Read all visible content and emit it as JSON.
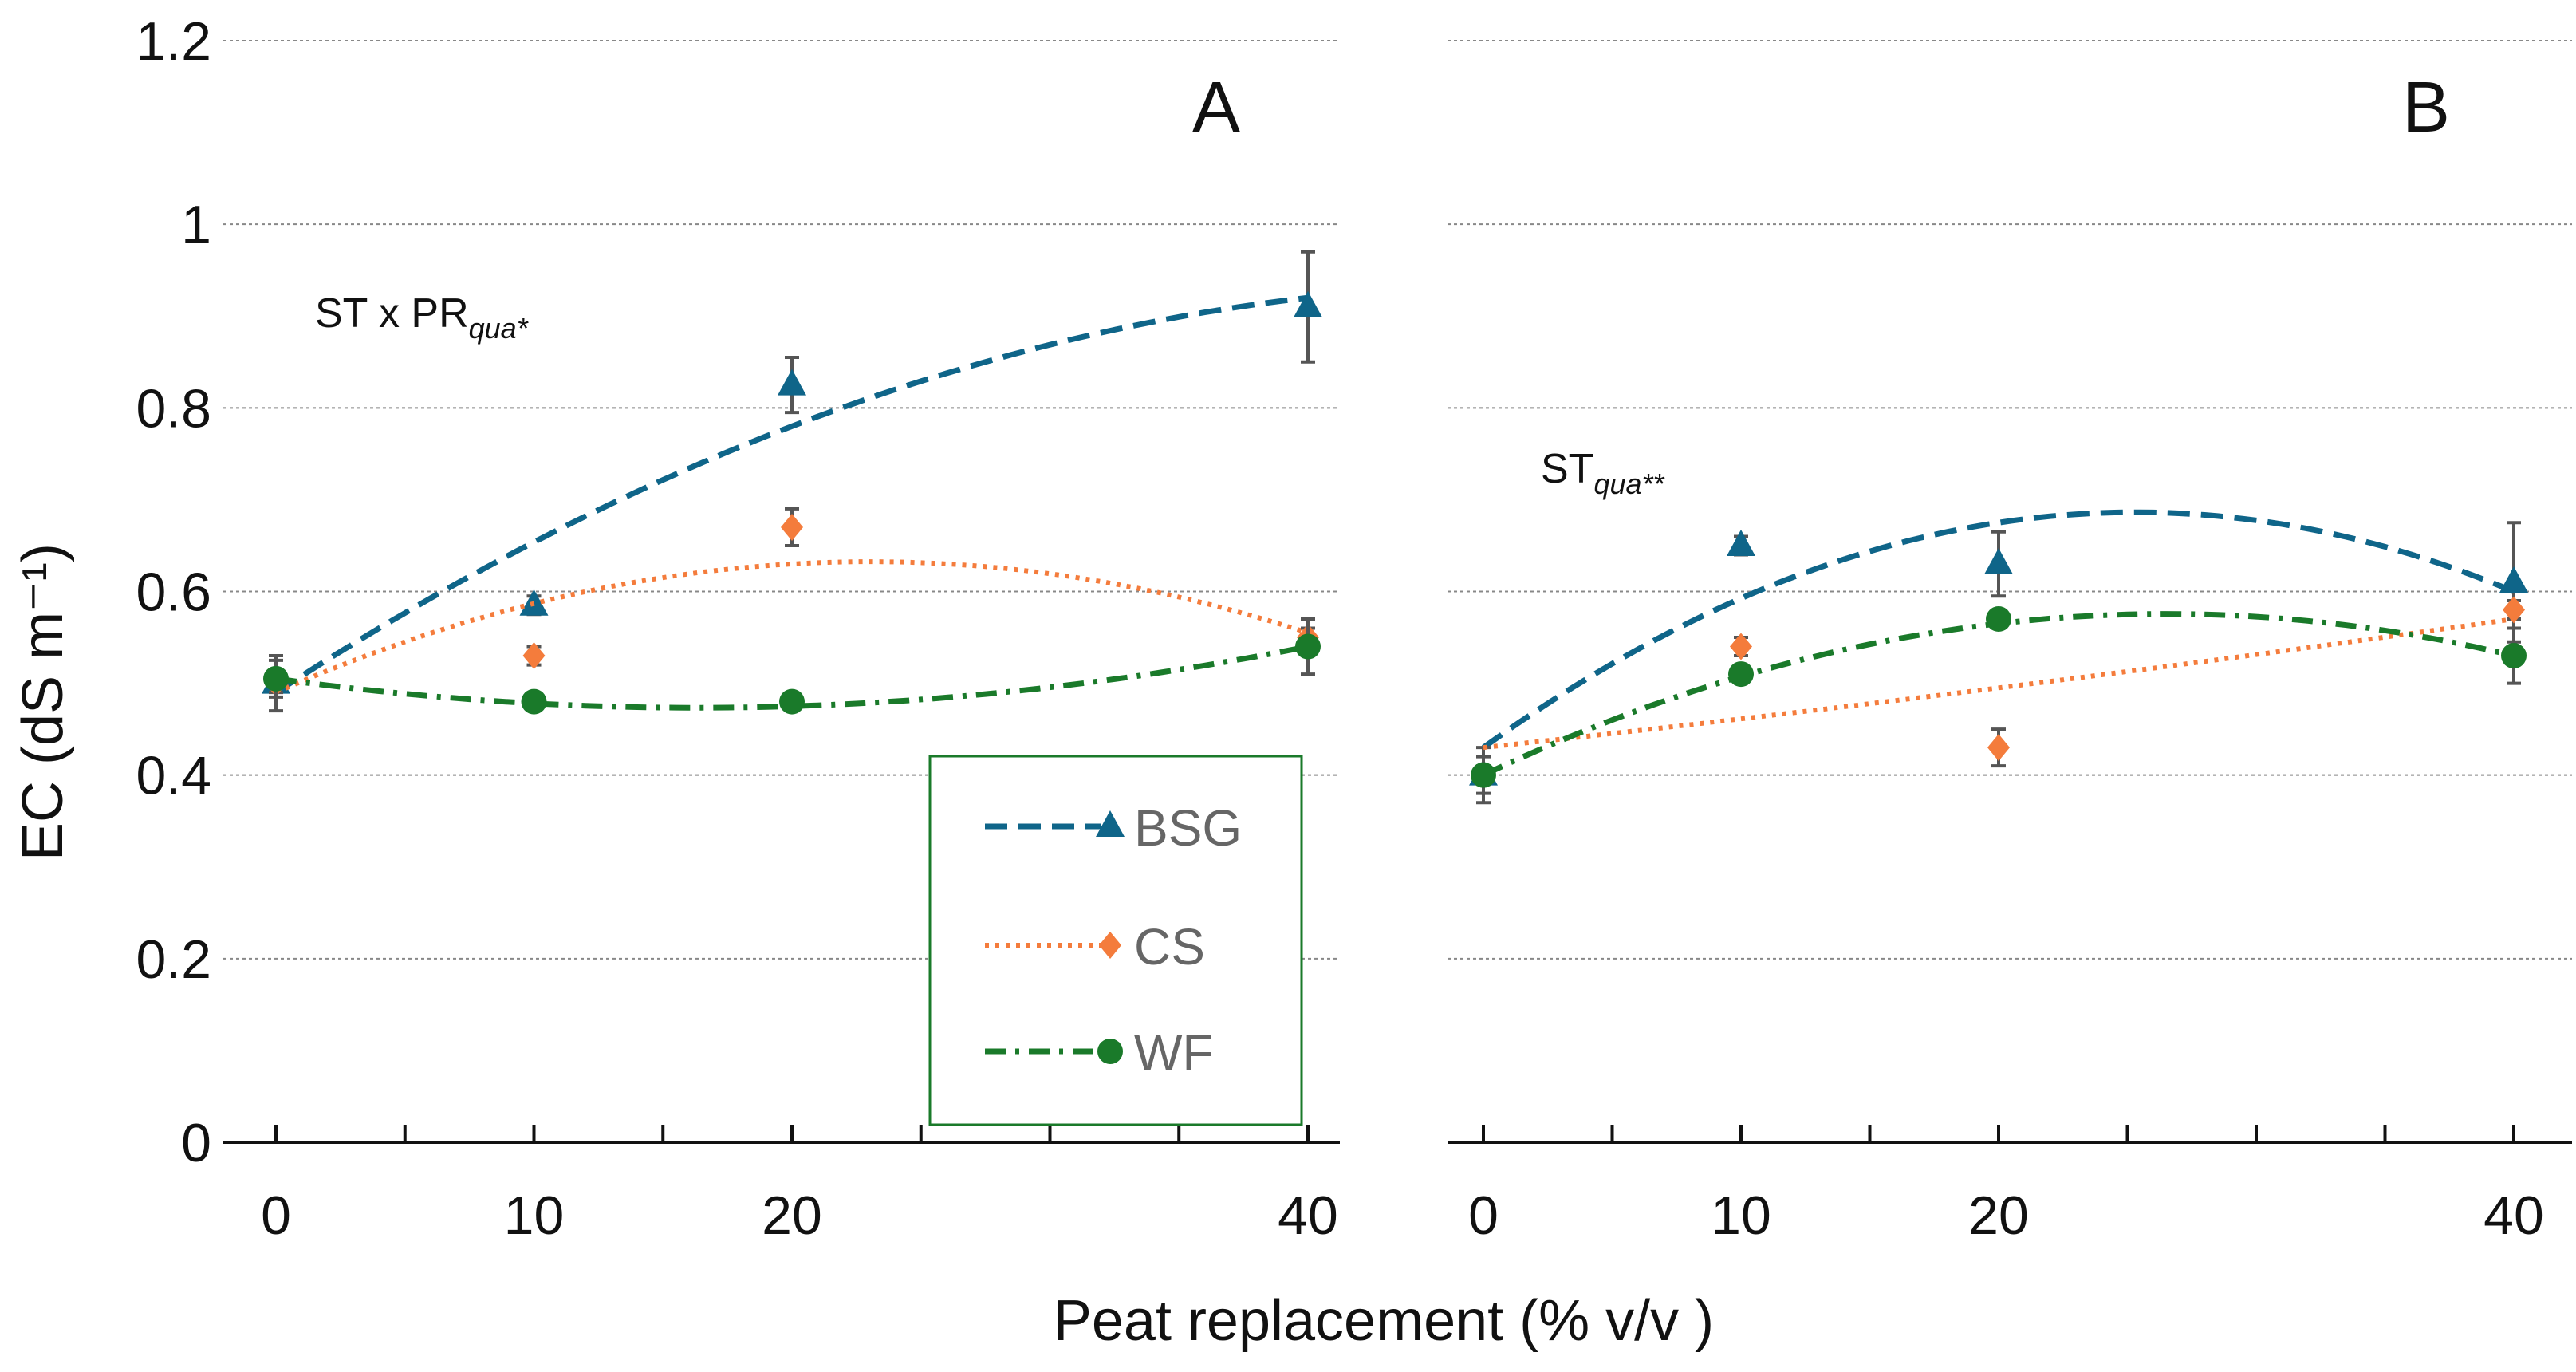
{
  "chart_data": [
    {
      "type": "scatter",
      "panel_label": "A",
      "annotation": {
        "main": "ST x PR",
        "sub": "qua*"
      },
      "x": [
        0,
        10,
        20,
        40
      ],
      "xlim": [
        0,
        40
      ],
      "ylim": [
        0,
        1.2
      ],
      "yticks": [
        "0",
        "0.2",
        "0.4",
        "0.6",
        "0.8",
        "1",
        "1.2"
      ],
      "xticks": [
        "0",
        "10",
        "20",
        "40"
      ],
      "series": [
        {
          "name": "BSG",
          "color": "#0f6589",
          "marker": "triangle",
          "line": "dashed",
          "values": [
            0.5,
            0.585,
            0.825,
            0.91
          ],
          "errors": [
            0.03,
            0.01,
            0.03,
            0.06
          ],
          "fit": [
            0.49,
            0.78,
            0.92
          ]
        },
        {
          "name": "CS",
          "color": "#f47c3c",
          "marker": "diamond",
          "line": "dotted",
          "values": [
            0.5,
            0.53,
            0.67,
            0.55
          ],
          "errors": [
            0.01,
            0.01,
            0.02,
            0.01
          ],
          "fit": [
            0.49,
            0.63,
            0.555
          ]
        },
        {
          "name": "WF",
          "color": "#1a7a2a",
          "marker": "circle",
          "line": "dashdot",
          "values": [
            0.505,
            0.48,
            0.48,
            0.54
          ],
          "errors": [
            0.02,
            0.005,
            0.005,
            0.03
          ],
          "fit": [
            0.505,
            0.475,
            0.54
          ]
        }
      ]
    },
    {
      "type": "scatter",
      "panel_label": "B",
      "annotation": {
        "main": "ST",
        "sub": "qua**"
      },
      "x": [
        0,
        10,
        20,
        40
      ],
      "xlim": [
        0,
        40
      ],
      "ylim": [
        0,
        1.2
      ],
      "xticks": [
        "0",
        "10",
        "20",
        "40"
      ],
      "series": [
        {
          "name": "BSG",
          "color": "#0f6589",
          "marker": "triangle",
          "line": "dashed",
          "values": [
            0.4,
            0.65,
            0.63,
            0.61
          ],
          "errors": [
            0.03,
            0.01,
            0.035,
            0.065
          ],
          "fit": [
            0.43,
            0.675,
            0.6
          ]
        },
        {
          "name": "CS",
          "color": "#f47c3c",
          "marker": "diamond",
          "line": "dotted",
          "values": [
            0.4,
            0.54,
            0.43,
            0.58
          ],
          "errors": [
            0.01,
            0.01,
            0.02,
            0.01
          ],
          "fit": [
            0.43,
            0.495,
            0.57
          ]
        },
        {
          "name": "WF",
          "color": "#1a7a2a",
          "marker": "circle",
          "line": "dashdot",
          "values": [
            0.4,
            0.51,
            0.57,
            0.53
          ],
          "errors": [
            0.02,
            0.01,
            0.005,
            0.03
          ],
          "fit": [
            0.4,
            0.565,
            0.53
          ]
        }
      ]
    }
  ],
  "ylabel": "EC (dS m⁻¹)",
  "xlabel": "Peat replacement (% v/v )",
  "legend": {
    "placement": "bottom-right of panel A",
    "border_color": "#1a7a2a",
    "items": [
      "BSG",
      "CS",
      "WF"
    ]
  }
}
